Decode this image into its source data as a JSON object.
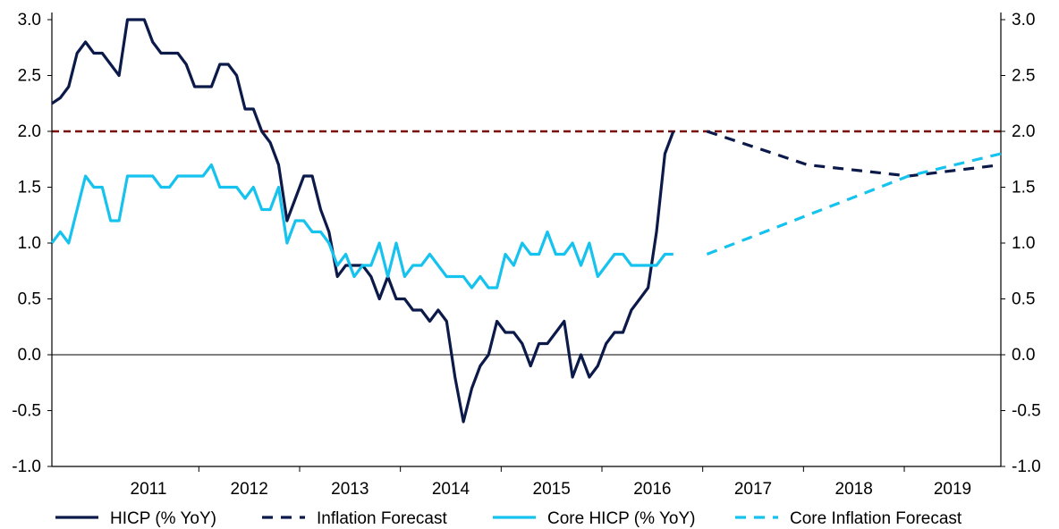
{
  "chart_data": {
    "type": "line",
    "title": "",
    "xlabel": "",
    "ylabel": "",
    "ylim": [
      -1.0,
      3.0
    ],
    "y_ticks": [
      "-1.0",
      "-0.5",
      "0.0",
      "0.5",
      "1.0",
      "1.5",
      "2.0",
      "2.5",
      "3.0"
    ],
    "y_tick_values": [
      -1.0,
      -0.5,
      0.0,
      0.5,
      1.0,
      1.5,
      2.0,
      2.5,
      3.0
    ],
    "dual_axis_mirrored": true,
    "x_categories": [
      "2011",
      "2012",
      "2013",
      "2014",
      "2015",
      "2016",
      "2017",
      "2018",
      "2019"
    ],
    "xlim": [
      "2010-07",
      "2019-12"
    ],
    "reference_lines": [
      {
        "y": 2.0,
        "style": "dashed",
        "color": "#7a0a0a"
      },
      {
        "y": 0.0,
        "style": "solid",
        "color": "#000000"
      }
    ],
    "legend_position": "bottom",
    "series": [
      {
        "name": "HICP (% YoY)",
        "style": "solid",
        "color": "#0c1a4a",
        "start": "2010-07",
        "step": "month",
        "values": [
          2.25,
          2.3,
          2.4,
          2.7,
          2.8,
          2.7,
          2.7,
          2.6,
          2.5,
          3.0,
          3.0,
          3.0,
          2.8,
          2.7,
          2.7,
          2.7,
          2.6,
          2.4,
          2.4,
          2.4,
          2.6,
          2.6,
          2.5,
          2.2,
          2.2,
          2.0,
          1.9,
          1.7,
          1.2,
          1.4,
          1.6,
          1.6,
          1.3,
          1.1,
          0.7,
          0.8,
          0.8,
          0.8,
          0.7,
          0.5,
          0.7,
          0.5,
          0.5,
          0.4,
          0.4,
          0.3,
          0.4,
          0.3,
          -0.2,
          -0.6,
          -0.3,
          -0.1,
          0.0,
          0.3,
          0.2,
          0.2,
          0.1,
          -0.1,
          0.1,
          0.1,
          0.2,
          0.3,
          -0.2,
          0.0,
          -0.2,
          -0.1,
          0.1,
          0.2,
          0.2,
          0.4,
          0.5,
          0.6,
          1.1,
          1.8,
          2.0
        ]
      },
      {
        "name": "Inflation Forecast",
        "style": "dashed",
        "color": "#0c1a4a",
        "points": [
          {
            "x": "2017-01",
            "y": 2.0
          },
          {
            "x": "2018-01",
            "y": 1.7
          },
          {
            "x": "2019-01",
            "y": 1.6
          },
          {
            "x": "2019-12",
            "y": 1.7
          }
        ]
      },
      {
        "name": "Core HICP (% YoY)",
        "style": "solid",
        "color": "#16c2ee",
        "start": "2010-07",
        "step": "month",
        "values": [
          1.0,
          1.1,
          1.0,
          1.3,
          1.6,
          1.5,
          1.5,
          1.2,
          1.2,
          1.6,
          1.6,
          1.6,
          1.6,
          1.5,
          1.5,
          1.6,
          1.6,
          1.6,
          1.6,
          1.7,
          1.5,
          1.5,
          1.5,
          1.4,
          1.5,
          1.3,
          1.3,
          1.5,
          1.0,
          1.2,
          1.2,
          1.1,
          1.1,
          1.0,
          0.8,
          0.9,
          0.7,
          0.8,
          0.8,
          1.0,
          0.7,
          1.0,
          0.7,
          0.8,
          0.8,
          0.9,
          0.8,
          0.7,
          0.7,
          0.7,
          0.6,
          0.7,
          0.6,
          0.6,
          0.9,
          0.8,
          1.0,
          0.9,
          0.9,
          1.1,
          0.9,
          0.9,
          1.0,
          0.8,
          1.0,
          0.7,
          0.8,
          0.9,
          0.9,
          0.8,
          0.8,
          0.8,
          0.8,
          0.9,
          0.9
        ]
      },
      {
        "name": "Core Inflation Forecast",
        "style": "dashed",
        "color": "#16c2ee",
        "points": [
          {
            "x": "2017-01",
            "y": 0.9
          },
          {
            "x": "2018-01",
            "y": 1.25
          },
          {
            "x": "2019-01",
            "y": 1.6
          },
          {
            "x": "2019-12",
            "y": 1.8
          }
        ]
      }
    ]
  }
}
